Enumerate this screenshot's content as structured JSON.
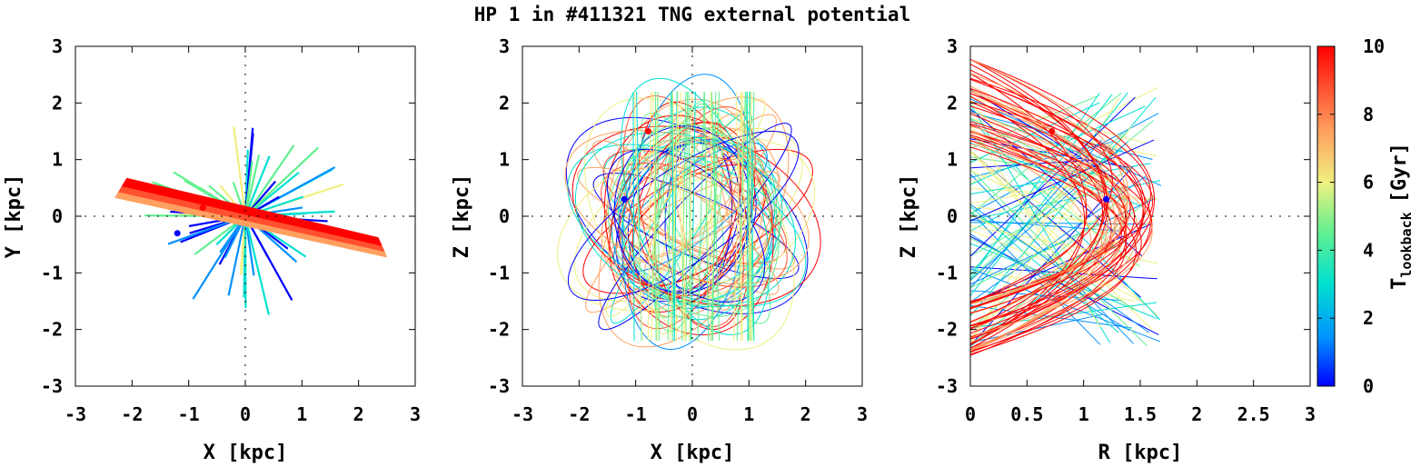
{
  "chart_data": {
    "type": "scatter",
    "title": "HP 1 in #411321 TNG external potential",
    "colorbar": {
      "label_main": "T",
      "label_sub": "lookback",
      "label_unit": "[Gyr]",
      "range": [
        0,
        10
      ],
      "ticks": [
        "0",
        "2",
        "4",
        "6",
        "8",
        "10"
      ],
      "tick_values": [
        0,
        2,
        4,
        6,
        8,
        10
      ],
      "colors": [
        "#0000ff",
        "#0090ff",
        "#00e0d0",
        "#60f090",
        "#f0f080",
        "#ffa060",
        "#ff5030",
        "#ff0000"
      ]
    },
    "panels": [
      {
        "name": "xy",
        "xlabel": "X [kpc]",
        "ylabel": "Y [kpc]",
        "xlim": [
          -3,
          3
        ],
        "ylim": [
          -3,
          3
        ],
        "xticks": [
          "-3",
          "-2",
          "-1",
          "0",
          "1",
          "2",
          "3"
        ],
        "xtick_values": [
          -3,
          -2,
          -1,
          0,
          1,
          2,
          3
        ],
        "yticks": [
          "-3",
          "-2",
          "-1",
          "0",
          "1",
          "2",
          "3"
        ],
        "ytick_values": [
          -3,
          -2,
          -1,
          0,
          1,
          2,
          3
        ],
        "markers": [
          {
            "x": -1.2,
            "y": -0.3,
            "color": "#0000ff"
          },
          {
            "x": -0.75,
            "y": 0.15,
            "color": "#ff0000"
          }
        ]
      },
      {
        "name": "xz",
        "xlabel": "X [kpc]",
        "ylabel": "Z [kpc]",
        "xlim": [
          -3,
          3
        ],
        "ylim": [
          -3,
          3
        ],
        "xticks": [
          "-3",
          "-2",
          "-1",
          "0",
          "1",
          "2",
          "3"
        ],
        "xtick_values": [
          -3,
          -2,
          -1,
          0,
          1,
          2,
          3
        ],
        "yticks": [
          "-3",
          "-2",
          "-1",
          "0",
          "1",
          "2",
          "3"
        ],
        "ytick_values": [
          -3,
          -2,
          -1,
          0,
          1,
          2,
          3
        ],
        "markers": [
          {
            "x": -1.2,
            "y": 0.3,
            "color": "#0000ff"
          },
          {
            "x": -0.78,
            "y": 1.5,
            "color": "#ff0000"
          }
        ]
      },
      {
        "name": "rz",
        "xlabel": "R [kpc]",
        "ylabel": "Z [kpc]",
        "xlim": [
          0,
          3
        ],
        "ylim": [
          -3,
          3
        ],
        "xticks": [
          "0",
          "0.5",
          "1",
          "1.5",
          "2",
          "2.5",
          "3"
        ],
        "xtick_values": [
          0,
          0.5,
          1,
          1.5,
          2,
          2.5,
          3
        ],
        "yticks": [
          "-3",
          "-2",
          "-1",
          "0",
          "1",
          "2",
          "3"
        ],
        "ytick_values": [
          -3,
          -2,
          -1,
          0,
          1,
          2,
          3
        ],
        "markers": [
          {
            "x": 1.2,
            "y": 0.3,
            "color": "#0000ff"
          },
          {
            "x": 0.72,
            "y": 1.5,
            "color": "#ff0000"
          }
        ]
      }
    ]
  }
}
